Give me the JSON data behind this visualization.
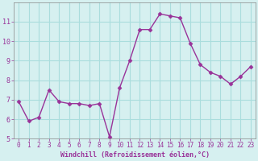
{
  "x": [
    0,
    1,
    2,
    3,
    4,
    5,
    6,
    7,
    8,
    9,
    10,
    11,
    12,
    13,
    14,
    15,
    16,
    17,
    18,
    19,
    20,
    21,
    22,
    23
  ],
  "y": [
    6.9,
    5.9,
    6.1,
    7.5,
    6.9,
    6.8,
    6.8,
    6.7,
    6.8,
    5.1,
    7.6,
    9.0,
    10.6,
    10.6,
    11.4,
    11.3,
    11.2,
    9.9,
    8.8,
    8.4,
    8.2,
    7.8,
    8.2,
    8.7
  ],
  "line_color": "#993399",
  "marker": "D",
  "marker_size": 2.5,
  "bg_color": "#d6f0f0",
  "grid_color": "#aadddd",
  "xlabel": "Windchill (Refroidissement éolien,°C)",
  "xlabel_color": "#993399",
  "ylim": [
    5,
    12
  ],
  "xlim": [
    -0.5,
    23.5
  ],
  "yticks": [
    5,
    6,
    7,
    8,
    9,
    10,
    11
  ],
  "xticks": [
    0,
    1,
    2,
    3,
    4,
    5,
    6,
    7,
    8,
    9,
    10,
    11,
    12,
    13,
    14,
    15,
    16,
    17,
    18,
    19,
    20,
    21,
    22,
    23
  ],
  "tick_label_color": "#993399",
  "spine_color": "#888888"
}
